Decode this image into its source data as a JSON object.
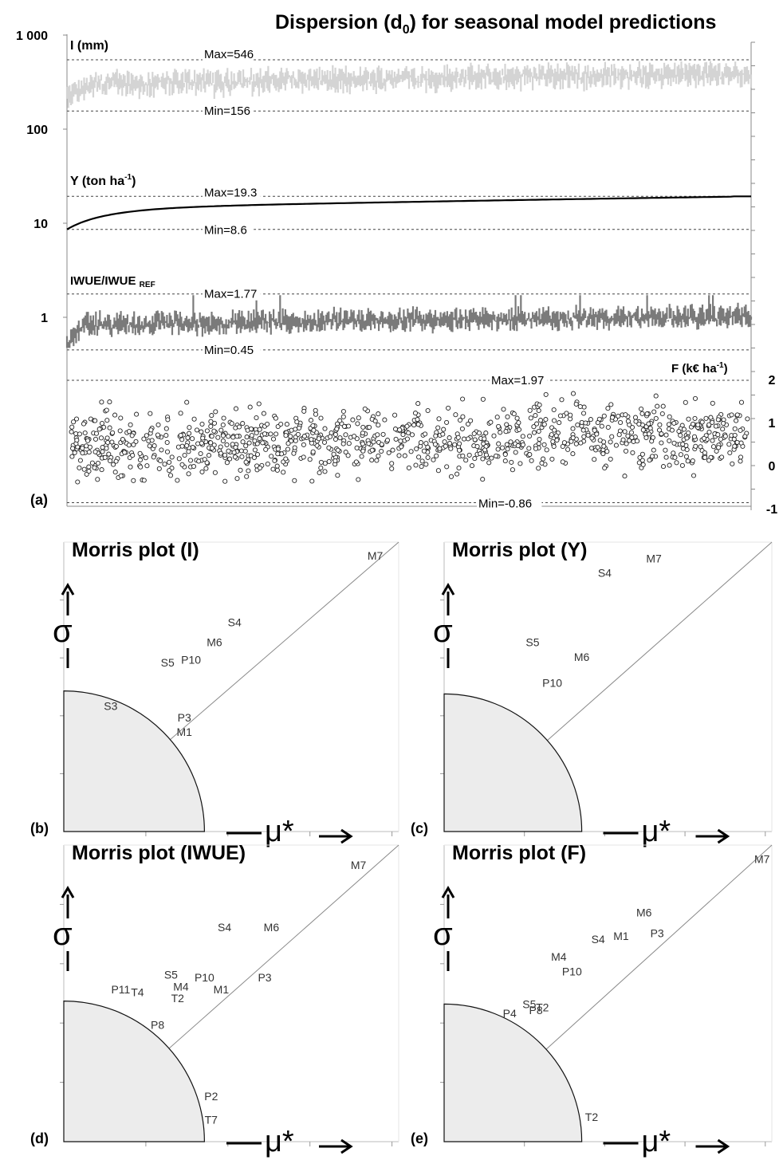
{
  "chart_data": [
    {
      "type": "line",
      "panel_label": "(a)",
      "title": "Dispersion (d0) for seasonal model predictions",
      "title_main": "Dispersion (d",
      "title_sub": "0",
      "title_tail": ") for seasonal model predictions",
      "y_scale": "log",
      "ylim": [
        0.04,
        1000
      ],
      "y_ticks": [
        "1 000",
        "100",
        "10",
        "1"
      ],
      "right_axis_ticks": [
        "2",
        "1",
        "0",
        "-1"
      ],
      "grid": false,
      "series": [
        {
          "name": "I (mm)",
          "label_main": "I (mm)",
          "label_sup": "",
          "label_tail": "",
          "color": "#d4d4d4",
          "style": "noisy-band",
          "max_label": "Max=546",
          "min_label": "Min=156",
          "max": 546,
          "min": 156,
          "start": 230,
          "end": 450
        },
        {
          "name": "Y (ton ha-1)",
          "label_main": "Y (ton ha",
          "label_sup": "-1",
          "label_tail": ")",
          "color": "#000000",
          "style": "smooth-line",
          "max_label": "Max=19.3",
          "min_label": "Min=8.6",
          "max": 19.3,
          "min": 8.6,
          "start": 8.6,
          "end": 19.3
        },
        {
          "name": "IWUE/IWUE REF",
          "label_main": "IWUE/IWUE",
          "label_sup": "",
          "label_sub": "REF",
          "label_tail": "",
          "color": "#7a7a7a",
          "style": "noisy-band",
          "max_label": "Max=1.77",
          "min_label": "Min=0.45",
          "max": 1.77,
          "min": 0.45,
          "start": 0.5,
          "end": 1.0
        },
        {
          "name": "F (k€ ha-1)",
          "label_main": "F (k€ ha",
          "label_sup": "-1",
          "label_tail": ")",
          "color": "#333333",
          "style": "scatter",
          "max_label": "Max=1.97",
          "min_label": "Min=-0.86",
          "max": 1.97,
          "min": -0.86,
          "axis": "right",
          "ylim": [
            -1,
            2
          ]
        }
      ]
    },
    {
      "type": "scatter",
      "panel_label": "(b)",
      "title": "Morris plot (I)",
      "xlabel": "μ*",
      "ylabel": "σ",
      "points": [
        {
          "label": "M7",
          "x": 0.93,
          "y": 0.94
        },
        {
          "label": "S4",
          "x": 0.51,
          "y": 0.71
        },
        {
          "label": "M6",
          "x": 0.45,
          "y": 0.64
        },
        {
          "label": "P10",
          "x": 0.38,
          "y": 0.58
        },
        {
          "label": "S5",
          "x": 0.31,
          "y": 0.57
        },
        {
          "label": "S3",
          "x": 0.14,
          "y": 0.42
        },
        {
          "label": "P3",
          "x": 0.36,
          "y": 0.38
        },
        {
          "label": "M1",
          "x": 0.36,
          "y": 0.33
        }
      ]
    },
    {
      "type": "scatter",
      "panel_label": "(c)",
      "title": "Morris plot (Y)",
      "xlabel": "μ*",
      "ylabel": "σ",
      "points": [
        {
          "label": "M7",
          "x": 0.64,
          "y": 0.93
        },
        {
          "label": "S4",
          "x": 0.49,
          "y": 0.88
        },
        {
          "label": "S5",
          "x": 0.27,
          "y": 0.64
        },
        {
          "label": "M6",
          "x": 0.42,
          "y": 0.59
        },
        {
          "label": "P10",
          "x": 0.33,
          "y": 0.5
        }
      ]
    },
    {
      "type": "scatter",
      "panel_label": "(d)",
      "title": "Morris plot (IWUE)",
      "xlabel": "μ*",
      "ylabel": "σ",
      "points": [
        {
          "label": "M7",
          "x": 0.88,
          "y": 0.92
        },
        {
          "label": "S4",
          "x": 0.48,
          "y": 0.71
        },
        {
          "label": "M6",
          "x": 0.62,
          "y": 0.71
        },
        {
          "label": "P3",
          "x": 0.6,
          "y": 0.54
        },
        {
          "label": "S5",
          "x": 0.32,
          "y": 0.55
        },
        {
          "label": "P10",
          "x": 0.42,
          "y": 0.54
        },
        {
          "label": "M4",
          "x": 0.35,
          "y": 0.51
        },
        {
          "label": "M1",
          "x": 0.47,
          "y": 0.5
        },
        {
          "label": "P11",
          "x": 0.17,
          "y": 0.5
        },
        {
          "label": "T4",
          "x": 0.22,
          "y": 0.49
        },
        {
          "label": "T2",
          "x": 0.34,
          "y": 0.47
        },
        {
          "label": "P8",
          "x": 0.28,
          "y": 0.38
        },
        {
          "label": "P2",
          "x": 0.44,
          "y": 0.14
        },
        {
          "label": "T7",
          "x": 0.44,
          "y": 0.06
        }
      ]
    },
    {
      "type": "scatter",
      "panel_label": "(e)",
      "title": "Morris plot (F)",
      "xlabel": "μ*",
      "ylabel": "σ",
      "points": [
        {
          "label": "M7",
          "x": 0.97,
          "y": 0.94
        },
        {
          "label": "M6",
          "x": 0.61,
          "y": 0.76
        },
        {
          "label": "S4",
          "x": 0.47,
          "y": 0.67
        },
        {
          "label": "M1",
          "x": 0.54,
          "y": 0.68
        },
        {
          "label": "P3",
          "x": 0.65,
          "y": 0.69
        },
        {
          "label": "M4",
          "x": 0.35,
          "y": 0.61
        },
        {
          "label": "P10",
          "x": 0.39,
          "y": 0.56
        },
        {
          "label": "S5",
          "x": 0.26,
          "y": 0.45
        },
        {
          "label": "P8",
          "x": 0.28,
          "y": 0.43
        },
        {
          "label": "T2",
          "x": 0.3,
          "y": 0.44
        },
        {
          "label": "P4",
          "x": 0.2,
          "y": 0.42
        },
        {
          "label": "T2",
          "x": 0.45,
          "y": 0.07
        }
      ]
    }
  ]
}
